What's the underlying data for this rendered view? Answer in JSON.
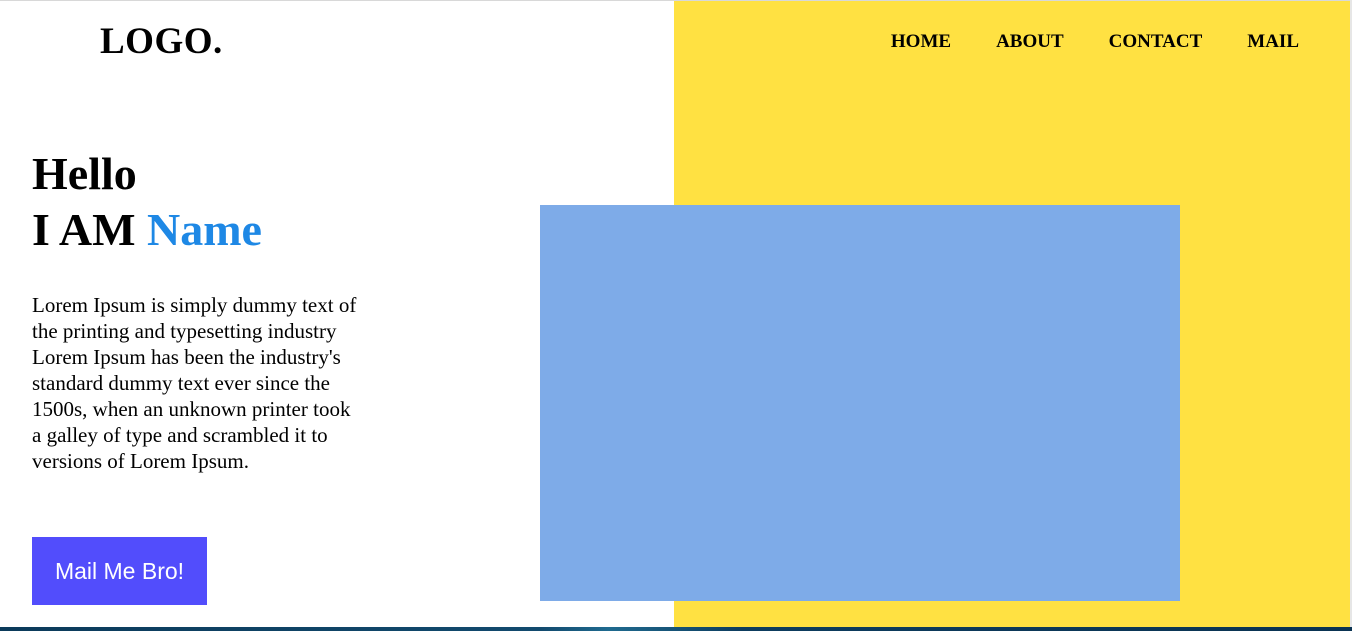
{
  "header": {
    "logo": "LOGO.",
    "nav": [
      {
        "label": "HOME"
      },
      {
        "label": "ABOUT"
      },
      {
        "label": "CONTACT"
      },
      {
        "label": "MAIL"
      }
    ]
  },
  "hero": {
    "greeting": "Hello",
    "intro_prefix": "I AM",
    "name": "Name",
    "description_lines": [
      "Lorem Ipsum is simply dummy text of the printing and typesetting industry",
      "Lorem Ipsum has been the industry's standard dummy text ever since the 1500s, when an unknown printer took",
      "a galley of type and scrambled it to versions of Lorem Ipsum."
    ],
    "cta_label": "Mail Me Bro!"
  },
  "colors": {
    "accent_panel": "#ffe142",
    "name_highlight": "#1e88e5",
    "cta_background": "#524dfc",
    "image_placeholder": "#7eabe8"
  }
}
